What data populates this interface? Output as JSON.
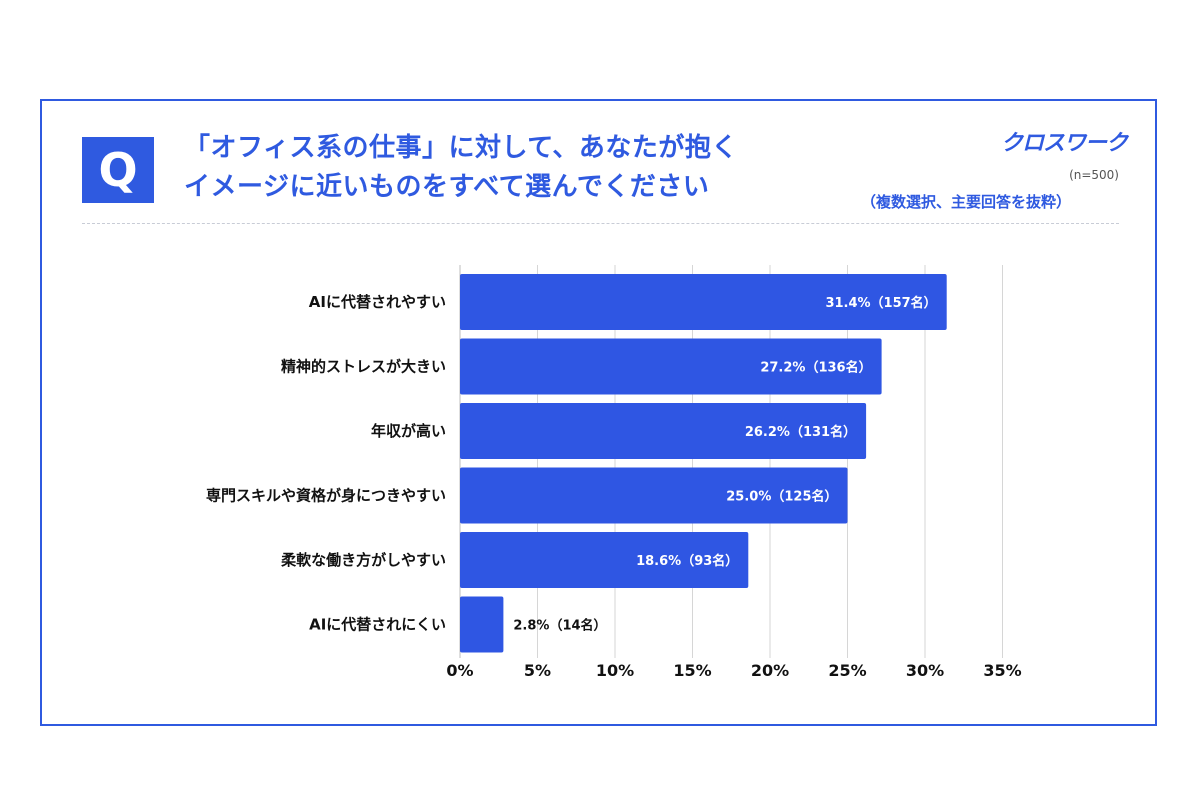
{
  "header": {
    "badge": "Q",
    "title_line1": "「オフィス系の仕事」に対して、あなたが抱く",
    "title_line2": "イメージに近いものをすべて選んでください",
    "brand": "クロスワーク",
    "sample_size": "(n=500)",
    "note": "（複数選択、主要回答を抜粋）"
  },
  "colors": {
    "accent": "#2f5ae0",
    "bar": "#2f56e3",
    "grid": "#d6d6d6",
    "frame": "#2f5ae0"
  },
  "chart_data": {
    "type": "bar",
    "orientation": "horizontal",
    "categories": [
      "AIに代替されやすい",
      "精神的ストレスが大きい",
      "年収が高い",
      "専門スキルや資格が身につきやすい",
      "柔軟な働き方がしやすい",
      "AIに代替されにくい"
    ],
    "values": [
      31.4,
      27.2,
      26.2,
      25.0,
      18.6,
      2.8
    ],
    "value_labels": [
      "31.4%（157名）",
      "27.2%（136名）",
      "26.2%（131名）",
      "25.0%（125名）",
      "18.6%（93名）",
      "2.8%（14名）"
    ],
    "xlim": [
      0,
      35
    ],
    "xticks": [
      "0%",
      "5%",
      "10%",
      "15%",
      "20%",
      "25%",
      "30%",
      "35%"
    ],
    "grid": true
  }
}
